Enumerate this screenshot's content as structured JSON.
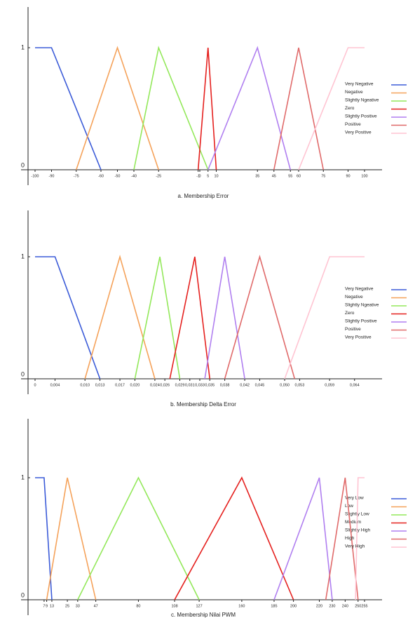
{
  "chart_data": [
    {
      "type": "line",
      "title": "a. Membership Error",
      "xlim": [
        -100,
        100
      ],
      "ylim": [
        0,
        1.35
      ],
      "yticks": [
        0,
        1
      ],
      "xticks": [
        -100,
        -90,
        -75,
        -60,
        -50,
        -40,
        -25,
        -1,
        0,
        5,
        10,
        35,
        45,
        55,
        60,
        75,
        90,
        100
      ],
      "series": [
        {
          "name": "Very Negative",
          "color": "#3b5bd8",
          "x": [
            -100,
            -90,
            -60
          ],
          "values": [
            1,
            1,
            0
          ]
        },
        {
          "name": "Negative",
          "color": "#f5a25a",
          "x": [
            -75,
            -50,
            -25
          ],
          "values": [
            0,
            1,
            0
          ]
        },
        {
          "name": "Slightly Ngeative",
          "color": "#93e85a",
          "x": [
            -40,
            -25,
            5
          ],
          "values": [
            0,
            1,
            0
          ]
        },
        {
          "name": "Zero",
          "color": "#e5201e",
          "x": [
            -1,
            5,
            10
          ],
          "values": [
            0,
            1,
            0
          ]
        },
        {
          "name": "Slightly Positive",
          "color": "#b07ff0",
          "x": [
            5,
            35,
            55
          ],
          "values": [
            0,
            1,
            0
          ]
        },
        {
          "name": "Positive",
          "color": "#e06a6a",
          "x": [
            45,
            60,
            75
          ],
          "values": [
            0,
            1,
            0
          ]
        },
        {
          "name": "Very Positive",
          "color": "#ffc4d2",
          "x": [
            60,
            90,
            100
          ],
          "values": [
            0,
            1,
            1
          ]
        }
      ]
    },
    {
      "type": "line",
      "title": "b. Membership Delta Error",
      "xlim": [
        0,
        0.066
      ],
      "ylim": [
        0,
        1.35
      ],
      "yticks": [
        0,
        1
      ],
      "xticks": [
        0,
        {
          "value": 0.004,
          "label": "0,004"
        },
        {
          "value": 0.01,
          "label": "0,010"
        },
        {
          "value": 0.013,
          "label": "0,013"
        },
        {
          "value": 0.017,
          "label": "0,017"
        },
        {
          "value": 0.02,
          "label": "0,020"
        },
        {
          "value": 0.024,
          "label": "0,024"
        },
        {
          "value": 0.026,
          "label": "0,026"
        },
        {
          "value": 0.029,
          "label": "0,029"
        },
        {
          "value": 0.031,
          "label": "0,031"
        },
        {
          "value": 0.033,
          "label": "0,033"
        },
        {
          "value": 0.035,
          "label": "0,035"
        },
        {
          "value": 0.038,
          "label": "0,038"
        },
        {
          "value": 0.042,
          "label": "0,042"
        },
        {
          "value": 0.045,
          "label": "0,045"
        },
        {
          "value": 0.05,
          "label": "0,050"
        },
        {
          "value": 0.053,
          "label": "0,053"
        },
        {
          "value": 0.059,
          "label": "0,059"
        },
        {
          "value": 0.064,
          "label": "0,064"
        }
      ],
      "series": [
        {
          "name": "Very Negative",
          "color": "#3b5bd8",
          "x": [
            0,
            0.004,
            0.013
          ],
          "values": [
            1,
            1,
            0
          ]
        },
        {
          "name": "Negative",
          "color": "#f5a25a",
          "x": [
            0.01,
            0.017,
            0.024
          ],
          "values": [
            0,
            1,
            0
          ]
        },
        {
          "name": "Slightly Ngeative",
          "color": "#93e85a",
          "x": [
            0.02,
            0.025,
            0.029
          ],
          "values": [
            0,
            1,
            0
          ]
        },
        {
          "name": "Zero",
          "color": "#e5201e",
          "x": [
            0.027,
            0.032,
            0.035
          ],
          "values": [
            0,
            1,
            0
          ]
        },
        {
          "name": "Slightly Positive",
          "color": "#b07ff0",
          "x": [
            0.034,
            0.038,
            0.042
          ],
          "values": [
            0,
            1,
            0
          ]
        },
        {
          "name": "Positive",
          "color": "#e06a6a",
          "x": [
            0.038,
            0.045,
            0.052
          ],
          "values": [
            0,
            1,
            0
          ]
        },
        {
          "name": "Very Positive",
          "color": "#ffc4d2",
          "x": [
            0.05,
            0.059,
            0.066
          ],
          "values": [
            0,
            1,
            1
          ]
        }
      ]
    },
    {
      "type": "line",
      "title": "c. Membership Nilai PWM",
      "xlim": [
        0,
        255
      ],
      "ylim": [
        0,
        1.35
      ],
      "yticks": [
        0,
        1
      ],
      "xticks": [
        7,
        9,
        13,
        25,
        33,
        47,
        80,
        108,
        127,
        160,
        185,
        200,
        220,
        230,
        240,
        250,
        255
      ],
      "series": [
        {
          "name": "Very Low",
          "color": "#3b5bd8",
          "x": [
            0,
            7,
            13
          ],
          "values": [
            1,
            1,
            0
          ]
        },
        {
          "name": "Low",
          "color": "#f5a25a",
          "x": [
            9,
            25,
            47
          ],
          "values": [
            0,
            1,
            0
          ]
        },
        {
          "name": "Slightly Low",
          "color": "#93e85a",
          "x": [
            33,
            80,
            127
          ],
          "values": [
            0,
            1,
            0
          ]
        },
        {
          "name": "Medium",
          "color": "#e5201e",
          "x": [
            108,
            160,
            200
          ],
          "values": [
            0,
            1,
            0
          ]
        },
        {
          "name": "Slightly High",
          "color": "#b07ff0",
          "x": [
            185,
            220,
            230
          ],
          "values": [
            0,
            1,
            0
          ]
        },
        {
          "name": "High",
          "color": "#e06a6a",
          "x": [
            225,
            240,
            250
          ],
          "values": [
            0,
            1,
            0
          ]
        },
        {
          "name": "Very High",
          "color": "#ffc4d2",
          "x": [
            248,
            250,
            255
          ],
          "values": [
            0,
            1,
            1
          ]
        }
      ]
    }
  ]
}
